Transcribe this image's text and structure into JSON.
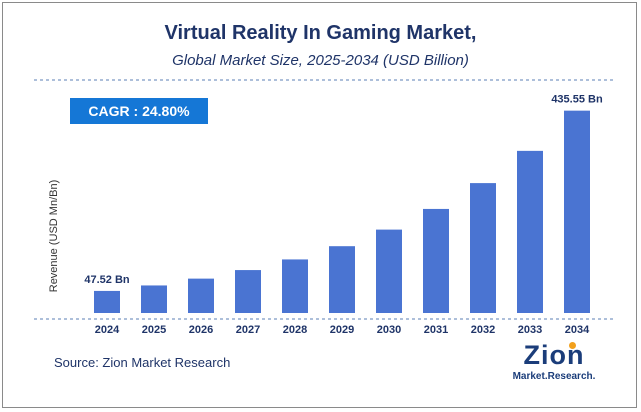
{
  "title": "Virtual Reality In Gaming Market,",
  "subtitle": "Global Market Size, 2025-2034 (USD Billion)",
  "cagr_label": "CAGR :  24.80%",
  "source": "Source: Zion Market Research",
  "logo": {
    "word": "Zion",
    "sub": "Market.Research."
  },
  "colors": {
    "bar": "#4a74d2",
    "title": "#1f3468",
    "cagr_box": "#1577d6",
    "divider": "#5b7fb5",
    "value_label": "#1f3468"
  },
  "chart_data": {
    "type": "bar",
    "categories": [
      "2024",
      "2025",
      "2026",
      "2027",
      "2028",
      "2029",
      "2030",
      "2031",
      "2032",
      "2033",
      "2034"
    ],
    "values": [
      47.52,
      59.3,
      74.0,
      92.4,
      115.3,
      143.8,
      179.5,
      224.0,
      279.6,
      349.0,
      435.55
    ],
    "data_labels": [
      {
        "category": "2024",
        "text": "47.52 Bn"
      },
      {
        "category": "2034",
        "text": "435.55 Bn"
      }
    ],
    "ylabel": "Revenue (USD Mn/Bn)",
    "xlabel": "",
    "ylim": [
      0,
      480
    ],
    "grid": false
  }
}
